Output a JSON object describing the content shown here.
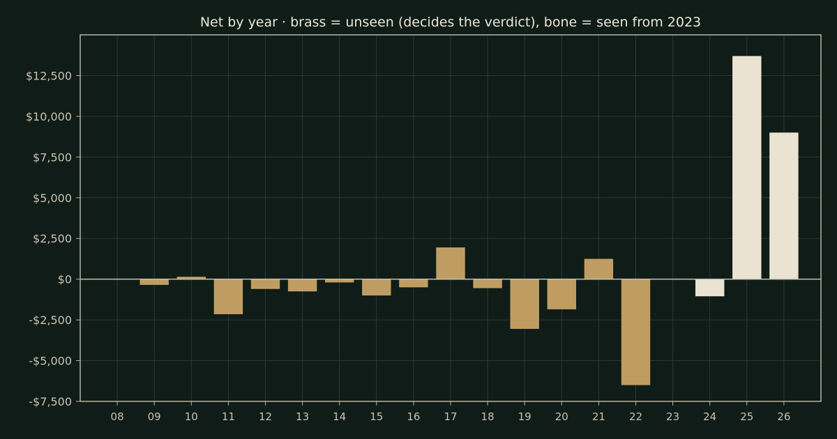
{
  "chart_data": {
    "type": "bar",
    "title": "Net by year  ·  brass = unseen (decides the verdict), bone = seen from 2023",
    "xlabel": "",
    "ylabel": "",
    "categories": [
      "08",
      "09",
      "10",
      "11",
      "12",
      "13",
      "14",
      "15",
      "16",
      "17",
      "18",
      "19",
      "20",
      "21",
      "22",
      "23",
      "24",
      "25",
      "26"
    ],
    "values": [
      0,
      -350,
      150,
      -2150,
      -600,
      -750,
      -200,
      -1000,
      -500,
      1950,
      -550,
      -3050,
      -1850,
      1250,
      -6500,
      0,
      -1050,
      13700,
      9000
    ],
    "groups": [
      "unseen",
      "unseen",
      "unseen",
      "unseen",
      "unseen",
      "unseen",
      "unseen",
      "unseen",
      "unseen",
      "unseen",
      "unseen",
      "unseen",
      "unseen",
      "unseen",
      "unseen",
      "seen",
      "seen",
      "seen",
      "seen"
    ],
    "colors": {
      "unseen": "#bf9d62",
      "seen": "#ebe3d2"
    },
    "ylim": [
      -7500,
      15000
    ],
    "yticks": [
      -7500,
      -5000,
      -2500,
      0,
      2500,
      5000,
      7500,
      10000,
      12500
    ],
    "ytick_labels": [
      "-$7,500",
      "-$5,000",
      "-$2,500",
      "$0",
      "$2,500",
      "$5,000",
      "$7,500",
      "$10,000",
      "$12,500"
    ],
    "grid": true,
    "legend": "none"
  }
}
